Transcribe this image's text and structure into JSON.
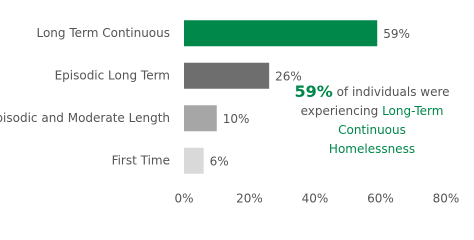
{
  "chart_data": {
    "type": "bar",
    "orientation": "horizontal",
    "categories": [
      "Long Term Continuous",
      "Episodic Long Term",
      "Episodic and Moderate Length",
      "First Time"
    ],
    "values": [
      59,
      26,
      10,
      6
    ],
    "value_labels": [
      "59%",
      "26%",
      "10%",
      "6%"
    ],
    "colors": [
      "#00874a",
      "#6e6e6e",
      "#a6a6a6",
      "#d9d9d9"
    ],
    "xlim": [
      0,
      80
    ],
    "xticks": [
      {
        "value": 0,
        "label": "0%"
      },
      {
        "value": 20,
        "label": "20%"
      },
      {
        "value": 40,
        "label": "40%"
      },
      {
        "value": 60,
        "label": "60%"
      },
      {
        "value": 80,
        "label": "80%"
      }
    ],
    "annotation": {
      "highlight_color": "#00874a",
      "lines": [
        [
          {
            "text": "59%",
            "highlight": true,
            "bold": true
          },
          {
            "text": " of individuals were"
          }
        ],
        [
          {
            "text": "experiencing "
          },
          {
            "text": "Long-Term",
            "highlight": true
          }
        ],
        [
          {
            "text": "Continuous",
            "highlight": true
          }
        ],
        [
          {
            "text": "Homelessness",
            "highlight": true
          }
        ]
      ]
    }
  }
}
